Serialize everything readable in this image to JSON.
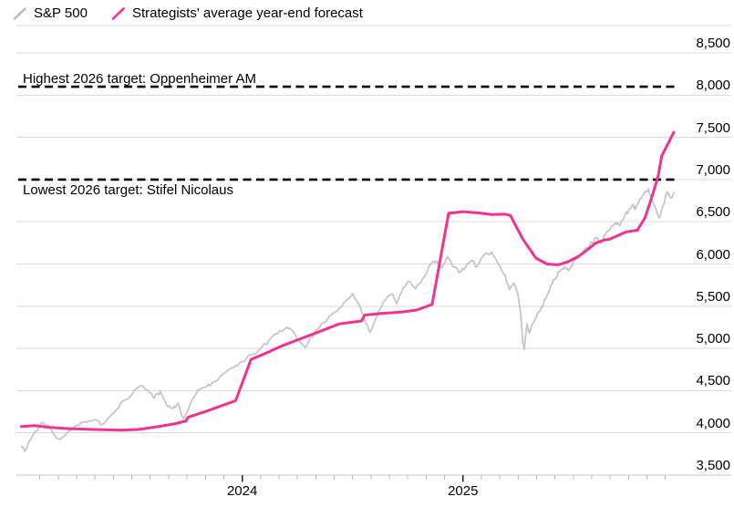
{
  "legend": {
    "items": [
      {
        "label": "S&P 500",
        "color": "#bfbfbf",
        "icon": "slash-line"
      },
      {
        "label": "Strategists' average year-end forecast",
        "color": "#f530942",
        "icon": "slash-line"
      }
    ]
  },
  "colors": {
    "sp500_line": "#c7c7c7",
    "forecast_line": "#f53094",
    "grid_line": "#dcdcdc",
    "axis_line": "#c9c9c9",
    "month_tick": "#b5b5b5",
    "year_tick": "#222222",
    "target_dash": "#000000",
    "text": "#000000",
    "background": "#ffffff"
  },
  "chart_data": {
    "type": "line",
    "title": "",
    "xlabel": "",
    "ylabel": "",
    "grid": true,
    "y_axis_side": "right",
    "x_range": [
      2023.0,
      2025.953
    ],
    "ylim": [
      3500,
      8500
    ],
    "x_year_labels": [
      {
        "label": "2024",
        "value": 2024
      },
      {
        "label": "2025",
        "value": 2025
      }
    ],
    "y_ticks": [
      {
        "label": "8,500",
        "value": 8500
      },
      {
        "label": "8,000",
        "value": 8000
      },
      {
        "label": "7,500",
        "value": 7500
      },
      {
        "label": "7,000",
        "value": 7000
      },
      {
        "label": "6,500",
        "value": 6500
      },
      {
        "label": "6,000",
        "value": 6000
      },
      {
        "label": "5,500",
        "value": 5500
      },
      {
        "label": "5,000",
        "value": 5000
      },
      {
        "label": "4,500",
        "value": 4500
      },
      {
        "label": "4,000",
        "value": 4000
      },
      {
        "label": "3,500",
        "value": 3500
      }
    ],
    "target_lines": [
      {
        "label": "Highest 2026 target: Oppenheimer AM",
        "value": 8100,
        "label_position": "above"
      },
      {
        "label": "Lowest 2026 target: Stifel Nicolaus",
        "value": 7000,
        "label_position": "below"
      }
    ],
    "series": [
      {
        "name": "S&P 500",
        "color": "#c7c7c7",
        "width": 1.8,
        "jitter": 22,
        "points": [
          [
            2023.0,
            3840
          ],
          [
            2023.015,
            3780
          ],
          [
            2023.05,
            3960
          ],
          [
            2023.09,
            4120
          ],
          [
            2023.13,
            4060
          ],
          [
            2023.165,
            3930
          ],
          [
            2023.2,
            3980
          ],
          [
            2023.25,
            4090
          ],
          [
            2023.29,
            4130
          ],
          [
            2023.33,
            4155
          ],
          [
            2023.37,
            4105
          ],
          [
            2023.42,
            4240
          ],
          [
            2023.46,
            4380
          ],
          [
            2023.5,
            4450
          ],
          [
            2023.54,
            4560
          ],
          [
            2023.575,
            4500
          ],
          [
            2023.6,
            4410
          ],
          [
            2023.63,
            4490
          ],
          [
            2023.655,
            4340
          ],
          [
            2023.685,
            4290
          ],
          [
            2023.71,
            4350
          ],
          [
            2023.735,
            4165
          ],
          [
            2023.77,
            4380
          ],
          [
            2023.8,
            4510
          ],
          [
            2023.84,
            4550
          ],
          [
            2023.87,
            4600
          ],
          [
            2023.91,
            4690
          ],
          [
            2023.96,
            4770
          ],
          [
            2024.0,
            4845
          ],
          [
            2024.04,
            4920
          ],
          [
            2024.08,
            4990
          ],
          [
            2024.12,
            5090
          ],
          [
            2024.16,
            5175
          ],
          [
            2024.2,
            5250
          ],
          [
            2024.23,
            5205
          ],
          [
            2024.265,
            5060
          ],
          [
            2024.285,
            5010
          ],
          [
            2024.33,
            5200
          ],
          [
            2024.37,
            5305
          ],
          [
            2024.42,
            5430
          ],
          [
            2024.46,
            5540
          ],
          [
            2024.5,
            5650
          ],
          [
            2024.53,
            5510
          ],
          [
            2024.555,
            5340
          ],
          [
            2024.58,
            5190
          ],
          [
            2024.62,
            5450
          ],
          [
            2024.65,
            5580
          ],
          [
            2024.68,
            5645
          ],
          [
            2024.7,
            5525
          ],
          [
            2024.73,
            5720
          ],
          [
            2024.76,
            5790
          ],
          [
            2024.785,
            5705
          ],
          [
            2024.82,
            5835
          ],
          [
            2024.855,
            6000
          ],
          [
            2024.88,
            6035
          ],
          [
            2024.905,
            5955
          ],
          [
            2024.93,
            6085
          ],
          [
            2024.955,
            5965
          ],
          [
            2024.99,
            5905
          ],
          [
            2025.02,
            6005
          ],
          [
            2025.04,
            6045
          ],
          [
            2025.06,
            5965
          ],
          [
            2025.09,
            6090
          ],
          [
            2025.13,
            6140
          ],
          [
            2025.16,
            5995
          ],
          [
            2025.19,
            5865
          ],
          [
            2025.21,
            5695
          ],
          [
            2025.23,
            5775
          ],
          [
            2025.25,
            5625
          ],
          [
            2025.262,
            5405
          ],
          [
            2025.27,
            5105
          ],
          [
            2025.277,
            4985
          ],
          [
            2025.29,
            5290
          ],
          [
            2025.3,
            5185
          ],
          [
            2025.32,
            5310
          ],
          [
            2025.345,
            5435
          ],
          [
            2025.365,
            5530
          ],
          [
            2025.385,
            5655
          ],
          [
            2025.41,
            5815
          ],
          [
            2025.44,
            5915
          ],
          [
            2025.46,
            5965
          ],
          [
            2025.48,
            5925
          ],
          [
            2025.5,
            6015
          ],
          [
            2025.53,
            6095
          ],
          [
            2025.56,
            6195
          ],
          [
            2025.585,
            6255
          ],
          [
            2025.605,
            6305
          ],
          [
            2025.625,
            6245
          ],
          [
            2025.645,
            6345
          ],
          [
            2025.67,
            6435
          ],
          [
            2025.69,
            6485
          ],
          [
            2025.71,
            6455
          ],
          [
            2025.73,
            6555
          ],
          [
            2025.75,
            6635
          ],
          [
            2025.77,
            6705
          ],
          [
            2025.78,
            6645
          ],
          [
            2025.8,
            6765
          ],
          [
            2025.82,
            6845
          ],
          [
            2025.84,
            6890
          ],
          [
            2025.86,
            6725
          ],
          [
            2025.875,
            6645
          ],
          [
            2025.89,
            6545
          ],
          [
            2025.91,
            6715
          ],
          [
            2025.925,
            6855
          ],
          [
            2025.94,
            6785
          ],
          [
            2025.955,
            6845
          ]
        ]
      },
      {
        "name": "Strategists' average year-end forecast",
        "color": "#f53094",
        "width": 3,
        "jitter": 0,
        "points": [
          [
            2023.0,
            4075
          ],
          [
            2023.06,
            4085
          ],
          [
            2023.13,
            4065
          ],
          [
            2023.22,
            4050
          ],
          [
            2023.33,
            4040
          ],
          [
            2023.45,
            4032
          ],
          [
            2023.53,
            4040
          ],
          [
            2023.62,
            4075
          ],
          [
            2023.7,
            4110
          ],
          [
            2023.745,
            4140
          ],
          [
            2023.755,
            4185
          ],
          [
            2023.83,
            4250
          ],
          [
            2023.9,
            4315
          ],
          [
            2023.97,
            4380
          ],
          [
            2024.04,
            4870
          ],
          [
            2024.1,
            4935
          ],
          [
            2024.18,
            5030
          ],
          [
            2024.27,
            5120
          ],
          [
            2024.36,
            5210
          ],
          [
            2024.44,
            5290
          ],
          [
            2024.54,
            5325
          ],
          [
            2024.555,
            5395
          ],
          [
            2024.63,
            5415
          ],
          [
            2024.72,
            5430
          ],
          [
            2024.79,
            5455
          ],
          [
            2024.86,
            5520
          ],
          [
            2024.935,
            6600
          ],
          [
            2025.0,
            6620
          ],
          [
            2025.07,
            6605
          ],
          [
            2025.13,
            6585
          ],
          [
            2025.19,
            6590
          ],
          [
            2025.215,
            6575
          ],
          [
            2025.27,
            6300
          ],
          [
            2025.33,
            6070
          ],
          [
            2025.38,
            6000
          ],
          [
            2025.43,
            5990
          ],
          [
            2025.47,
            6020
          ],
          [
            2025.52,
            6085
          ],
          [
            2025.56,
            6160
          ],
          [
            2025.6,
            6245
          ],
          [
            2025.64,
            6285
          ],
          [
            2025.66,
            6290
          ],
          [
            2025.7,
            6335
          ],
          [
            2025.74,
            6380
          ],
          [
            2025.79,
            6400
          ],
          [
            2025.825,
            6550
          ],
          [
            2025.86,
            6830
          ],
          [
            2025.885,
            7050
          ],
          [
            2025.9,
            7280
          ],
          [
            2025.93,
            7430
          ],
          [
            2025.955,
            7560
          ]
        ]
      }
    ]
  }
}
